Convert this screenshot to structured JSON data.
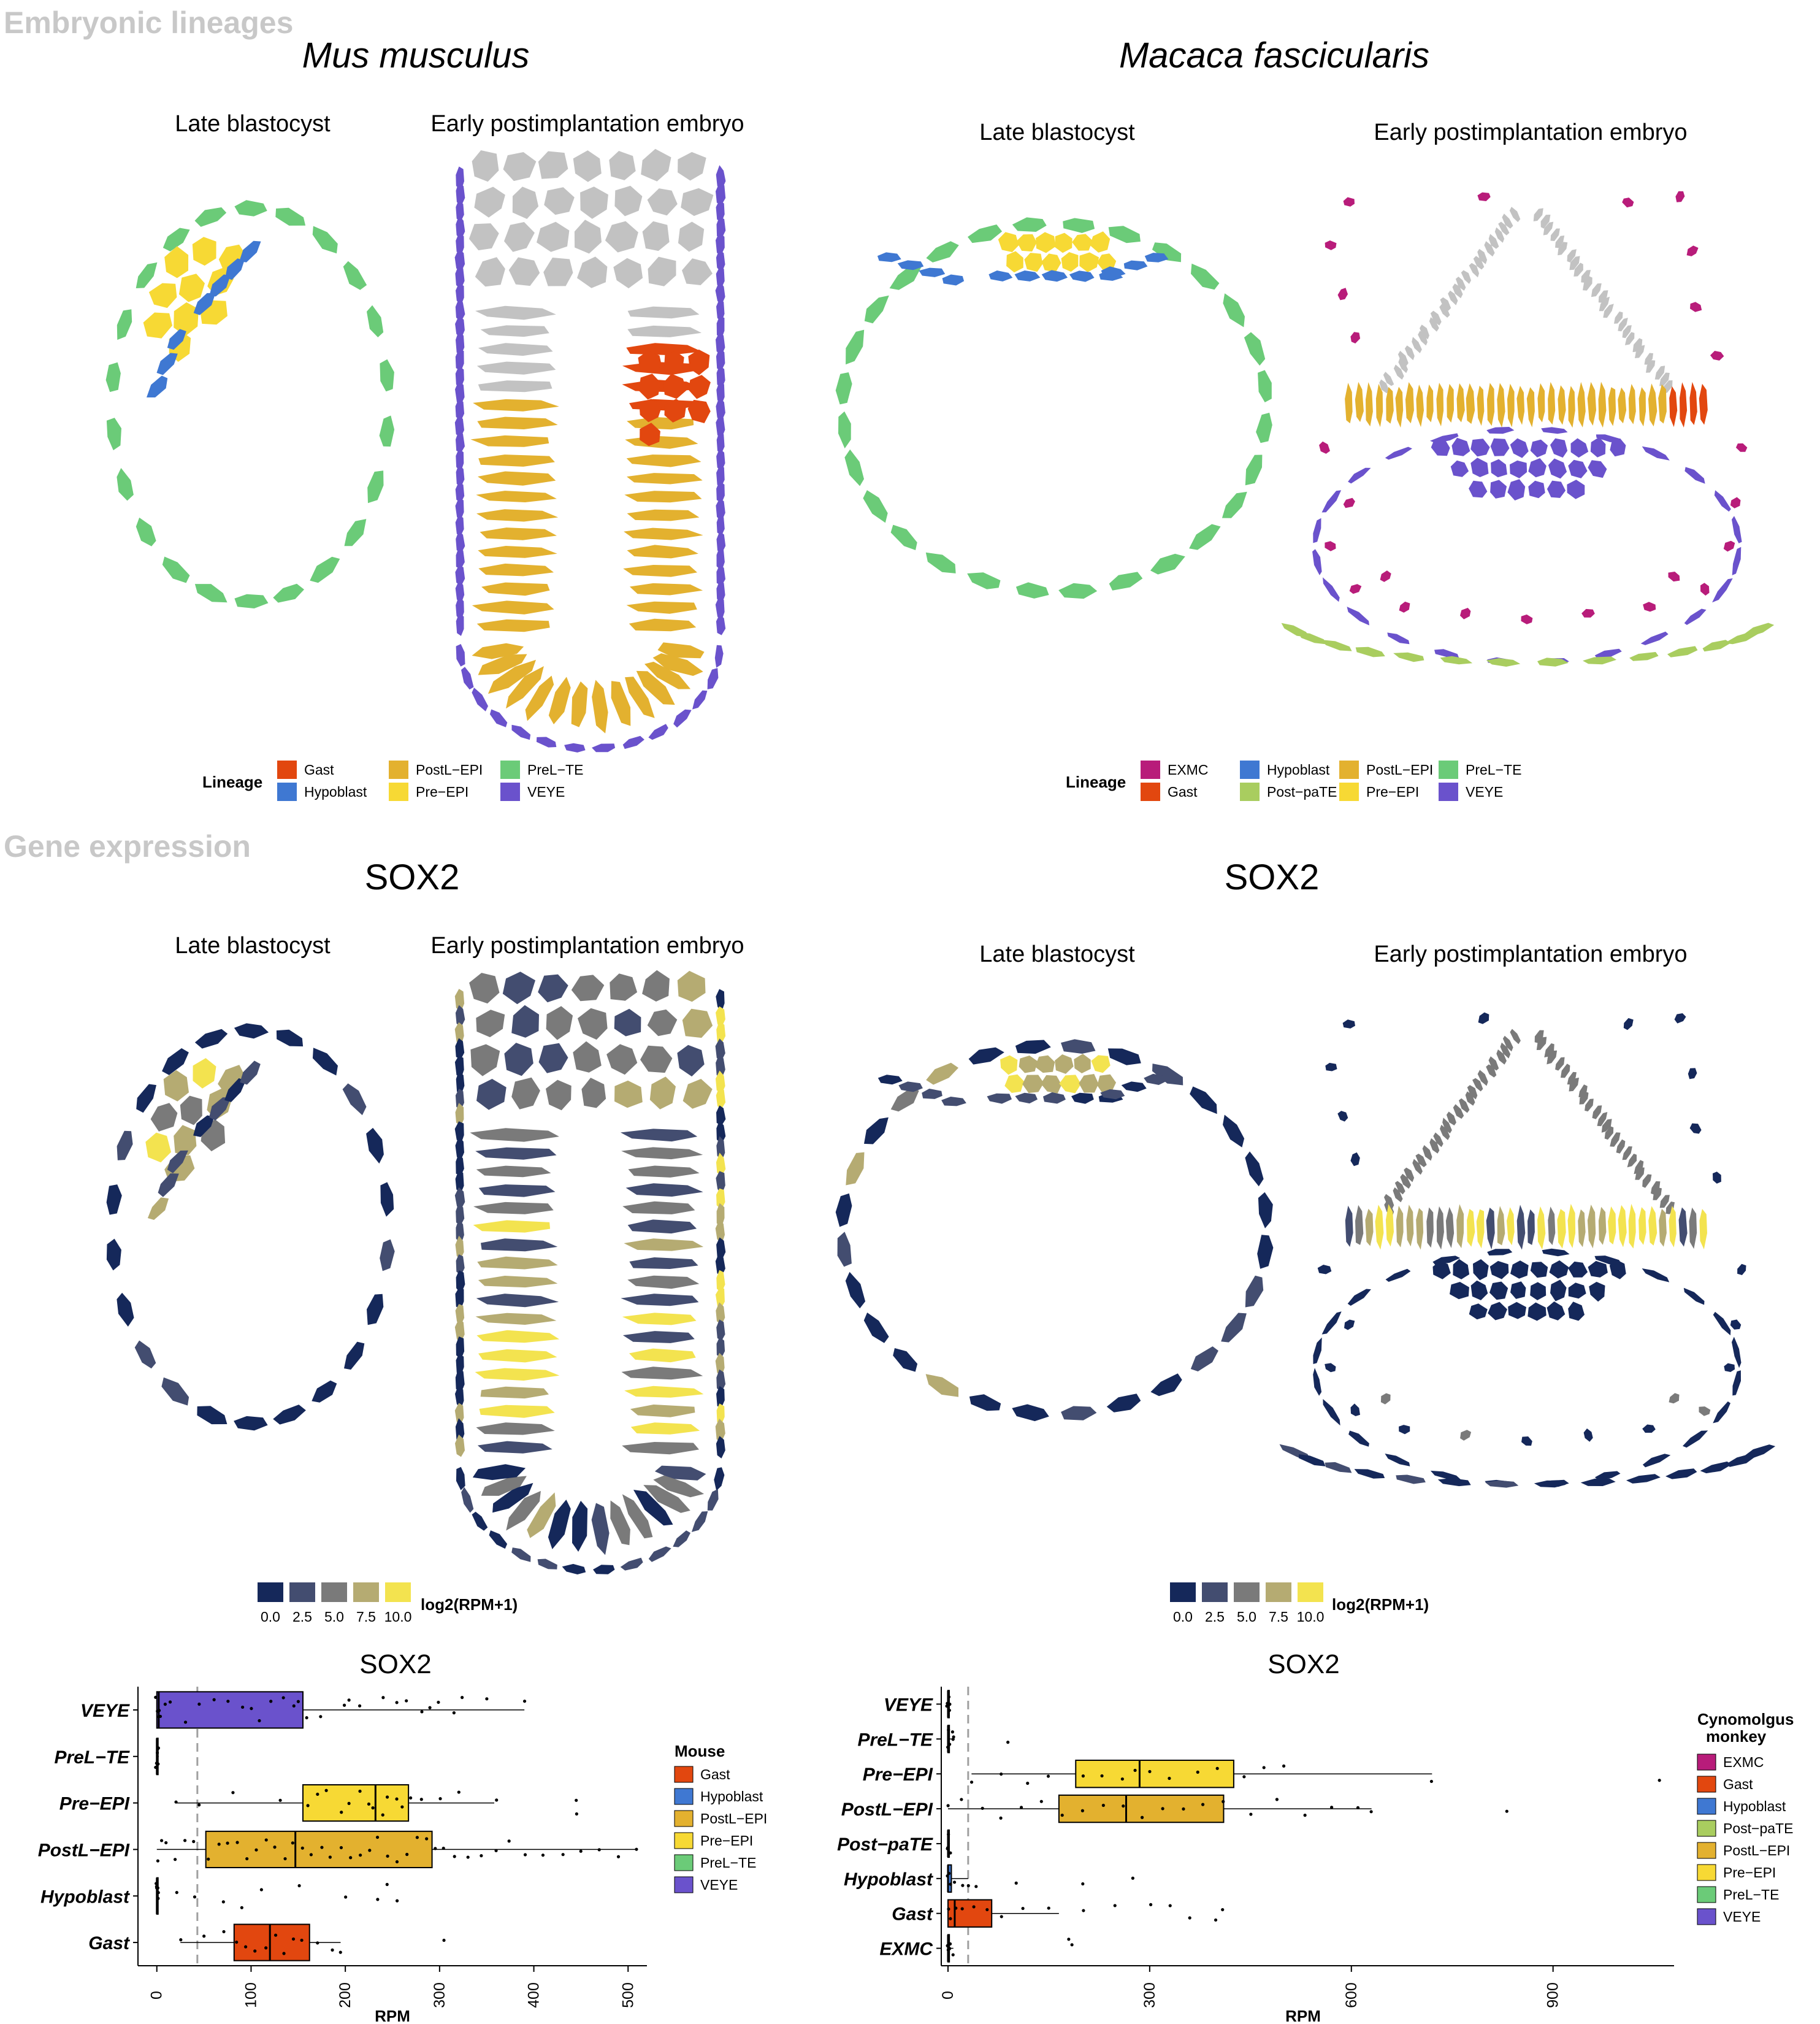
{
  "sections": {
    "lineages": "Embryonic lineages",
    "expression": "Gene expression"
  },
  "species": {
    "mouse": "Mus musculus",
    "monkey": "Macaca fascicularis"
  },
  "gene": "SOX2",
  "stages": {
    "late": "Late blastocyst",
    "early": "Early postimplantation embryo"
  },
  "colors": {
    "Gast": "#e2470f",
    "Hypoblast": "#3f78d2",
    "PostL-EPI": "#e3b12f",
    "Pre-EPI": "#f7d934",
    "PreL-TE": "#6bcb78",
    "VEYE": "#6a52cc",
    "EXMC": "#b81c7a",
    "Post-paTE": "#a9cd5f",
    "unassigned": "#c2c2c2"
  },
  "expr_scale": [
    "#15285a",
    "#434d70",
    "#7a7a7a",
    "#b5ab72",
    "#f3e34f"
  ],
  "mouse_lineage_legend": {
    "title": "Lineage",
    "items": [
      {
        "label": "Gast",
        "color": "#e2470f"
      },
      {
        "label": "Hypoblast",
        "color": "#3f78d2"
      },
      {
        "label": "PostL−EPI",
        "color": "#e3b12f"
      },
      {
        "label": "Pre−EPI",
        "color": "#f7d934"
      },
      {
        "label": "PreL−TE",
        "color": "#6bcb78"
      },
      {
        "label": "VEYE",
        "color": "#6a52cc"
      }
    ]
  },
  "monkey_lineage_legend": {
    "title": "Lineage",
    "items": [
      {
        "label": "EXMC",
        "color": "#b81c7a"
      },
      {
        "label": "Gast",
        "color": "#e2470f"
      },
      {
        "label": "Hypoblast",
        "color": "#3f78d2"
      },
      {
        "label": "Post−paTE",
        "color": "#a9cd5f"
      },
      {
        "label": "PostL−EPI",
        "color": "#e3b12f"
      },
      {
        "label": "Pre−EPI",
        "color": "#f7d934"
      },
      {
        "label": "PreL−TE",
        "color": "#6bcb78"
      },
      {
        "label": "VEYE",
        "color": "#6a52cc"
      }
    ]
  },
  "expr_legend": {
    "title": "log2(RPM+1)",
    "ticks": [
      "0.0",
      "2.5",
      "5.0",
      "7.5",
      "10.0"
    ]
  },
  "chart_data": [
    {
      "type": "boxplot",
      "title": "SOX2",
      "xlabel": "RPM",
      "ylabel": "",
      "xlim": [
        -20,
        520
      ],
      "xticks": [
        0,
        100,
        200,
        300,
        400,
        500
      ],
      "threshold_line": 43,
      "legend_title": "Mouse",
      "legend": [
        "Gast",
        "Hypoblast",
        "PostL−EPI",
        "Pre−EPI",
        "PreL−TE",
        "VEYE"
      ],
      "categories": [
        "VEYE",
        "PreL−TE",
        "Pre−EPI",
        "PostL−EPI",
        "Hypoblast",
        "Gast"
      ],
      "boxes": [
        {
          "name": "VEYE",
          "color": "#6a52cc",
          "q1": 0,
          "median": 2,
          "q3": 155,
          "whisker_low": 0,
          "whisker_high": 390,
          "points": [
            0,
            1,
            2,
            3,
            5,
            8,
            15,
            30,
            45,
            60,
            75,
            90,
            100,
            110,
            120,
            135,
            145,
            150,
            160,
            175,
            200,
            205,
            215,
            240,
            255,
            265,
            280,
            290,
            300,
            315,
            325,
            350,
            390
          ]
        },
        {
          "name": "PreL−TE",
          "color": "#6bcb78",
          "q1": 0,
          "median": 0,
          "q3": 1,
          "whisker_low": 0,
          "whisker_high": 2,
          "points": [
            0,
            0,
            0,
            1,
            1,
            2
          ]
        },
        {
          "name": "Pre−EPI",
          "color": "#f7d934",
          "q1": 155,
          "median": 232,
          "q3": 267,
          "whisker_low": 20,
          "whisker_high": 358,
          "points": [
            20,
            45,
            80,
            130,
            160,
            170,
            180,
            195,
            205,
            215,
            225,
            230,
            240,
            245,
            255,
            260,
            270,
            280,
            300,
            320,
            360,
            445,
            445
          ]
        },
        {
          "name": "PostL−EPI",
          "color": "#e3b12f",
          "q1": 52,
          "median": 147,
          "q3": 292,
          "whisker_low": 0,
          "whisker_high": 510,
          "points": [
            0,
            5,
            10,
            20,
            30,
            40,
            55,
            65,
            75,
            85,
            95,
            105,
            115,
            125,
            135,
            145,
            155,
            165,
            175,
            185,
            195,
            205,
            215,
            225,
            235,
            245,
            255,
            265,
            275,
            285,
            295,
            305,
            315,
            330,
            345,
            360,
            375,
            390,
            410,
            430,
            450,
            470,
            490,
            510
          ]
        },
        {
          "name": "Hypoblast",
          "color": "#3f78d2",
          "q1": 0,
          "median": 0,
          "q3": 1,
          "whisker_low": 0,
          "whisker_high": 2,
          "points": [
            0,
            0,
            0,
            1,
            1,
            2,
            20,
            40,
            70,
            90,
            110,
            150,
            200,
            235,
            245,
            255
          ]
        },
        {
          "name": "Gast",
          "color": "#e2470f",
          "q1": 82,
          "median": 120,
          "q3": 162,
          "whisker_low": 25,
          "whisker_high": 195,
          "points": [
            25,
            50,
            70,
            85,
            95,
            105,
            115,
            125,
            135,
            145,
            155,
            170,
            185,
            195,
            305
          ]
        }
      ]
    },
    {
      "type": "boxplot",
      "title": "SOX2",
      "xlabel": "RPM",
      "ylabel": "",
      "xlim": [
        -10,
        1080
      ],
      "xticks": [
        0,
        300,
        600,
        900
      ],
      "threshold_line": 30,
      "legend_title": "Cynomolgus\nmonkey",
      "legend": [
        "EXMC",
        "Gast",
        "Hypoblast",
        "Post−paTE",
        "PostL−EPI",
        "Pre−EPI",
        "PreL−TE",
        "VEYE"
      ],
      "categories": [
        "VEYE",
        "PreL−TE",
        "Pre−EPI",
        "PostL−EPI",
        "Post−paTE",
        "Hypoblast",
        "Gast",
        "EXMC"
      ],
      "boxes": [
        {
          "name": "VEYE",
          "color": "#6a52cc",
          "q1": 0,
          "median": 0,
          "q3": 1,
          "whisker_low": 0,
          "whisker_high": 3,
          "points": [
            0,
            0,
            1,
            2,
            3
          ]
        },
        {
          "name": "PreL−TE",
          "color": "#6bcb78",
          "q1": 0,
          "median": 0,
          "q3": 2,
          "whisker_low": 0,
          "whisker_high": 10,
          "points": [
            0,
            1,
            2,
            5,
            8,
            10,
            90
          ]
        },
        {
          "name": "Pre−EPI",
          "color": "#f7d934",
          "q1": 190,
          "median": 285,
          "q3": 425,
          "whisker_low": 35,
          "whisker_high": 720,
          "points": [
            35,
            80,
            120,
            150,
            200,
            230,
            260,
            280,
            300,
            330,
            370,
            400,
            440,
            470,
            500,
            720,
            1060
          ]
        },
        {
          "name": "PostL−EPI",
          "color": "#e3b12f",
          "q1": 165,
          "median": 265,
          "q3": 410,
          "whisker_low": 0,
          "whisker_high": 630,
          "points": [
            0,
            20,
            50,
            80,
            110,
            140,
            170,
            200,
            230,
            260,
            290,
            320,
            350,
            380,
            410,
            450,
            490,
            530,
            570,
            610,
            630,
            830
          ]
        },
        {
          "name": "Post−paTE",
          "color": "#a9cd5f",
          "q1": 0,
          "median": 0,
          "q3": 1,
          "whisker_low": 0,
          "whisker_high": 2,
          "points": [
            0,
            0,
            1,
            2
          ]
        },
        {
          "name": "Hypoblast",
          "color": "#3f78d2",
          "q1": 0,
          "median": 0,
          "q3": 5,
          "whisker_low": 0,
          "whisker_high": 30,
          "points": [
            0,
            2,
            5,
            10,
            20,
            30,
            40,
            100,
            200,
            275
          ]
        },
        {
          "name": "Gast",
          "color": "#e2470f",
          "q1": 0,
          "median": 10,
          "q3": 65,
          "whisker_low": 0,
          "whisker_high": 165,
          "points": [
            0,
            5,
            10,
            20,
            40,
            60,
            80,
            110,
            150,
            200,
            250,
            300,
            330,
            360,
            400,
            410
          ]
        },
        {
          "name": "EXMC",
          "color": "#b81c7a",
          "q1": 0,
          "median": 0,
          "q3": 2,
          "whisker_low": 0,
          "whisker_high": 8,
          "points": [
            0,
            1,
            2,
            5,
            8,
            180,
            185
          ]
        }
      ]
    }
  ]
}
